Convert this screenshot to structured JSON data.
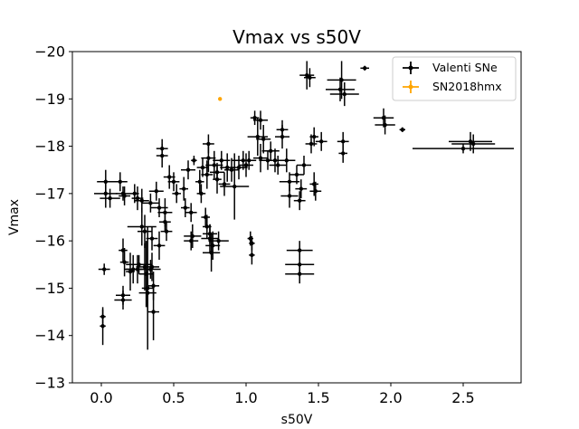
{
  "chart_data": {
    "type": "scatter",
    "title": "Vmax vs s50V",
    "xlabel": "s50V",
    "ylabel": "Vmax",
    "xlim": [
      -0.2,
      2.9
    ],
    "ylim": [
      -13,
      -20
    ],
    "y_inverted": true,
    "x_ticks": [
      "0.0",
      "0.5",
      "1.0",
      "1.5",
      "2.0",
      "2.5"
    ],
    "y_ticks": [
      "−20",
      "−19",
      "−18",
      "−17",
      "−16",
      "−15",
      "−14",
      "−13"
    ],
    "grid": false,
    "legend_position": "top-right",
    "series": [
      {
        "name": "Valenti SNe",
        "color": "#000000",
        "marker": "circle-with-errorbars",
        "points": [
          [
            0.02,
            -15.4,
            0.04,
            0.12
          ],
          [
            0.01,
            -14.4,
            0.02,
            0.15
          ],
          [
            0.01,
            -14.2,
            0.02,
            0.4
          ],
          [
            0.03,
            -17.25,
            0.06,
            0.25
          ],
          [
            0.03,
            -17.0,
            0.08,
            0.3
          ],
          [
            0.06,
            -16.9,
            0.07,
            0.2
          ],
          [
            0.13,
            -17.25,
            0.05,
            0.2
          ],
          [
            0.15,
            -17.0,
            0.05,
            0.15
          ],
          [
            0.16,
            -16.95,
            0.04,
            0.2
          ],
          [
            0.15,
            -15.8,
            0.03,
            0.25
          ],
          [
            0.16,
            -15.55,
            0.03,
            0.3
          ],
          [
            0.15,
            -14.85,
            0.05,
            0.2
          ],
          [
            0.15,
            -14.75,
            0.06,
            0.2
          ],
          [
            0.2,
            -15.35,
            0.03,
            0.4
          ],
          [
            0.22,
            -15.4,
            0.06,
            0.3
          ],
          [
            0.23,
            -17.0,
            0.03,
            0.2
          ],
          [
            0.25,
            -16.9,
            0.04,
            0.25
          ],
          [
            0.25,
            -15.4,
            0.08,
            0.3
          ],
          [
            0.26,
            -15.5,
            0.09,
            0.2
          ],
          [
            0.28,
            -16.85,
            0.05,
            0.25
          ],
          [
            0.28,
            -16.3,
            0.1,
            0.4
          ],
          [
            0.3,
            -16.2,
            0.05,
            0.35
          ],
          [
            0.3,
            -15.45,
            0.06,
            0.5
          ],
          [
            0.31,
            -15.3,
            0.05,
            0.7
          ],
          [
            0.32,
            -15.0,
            0.04,
            1.3
          ],
          [
            0.32,
            -14.9,
            0.06,
            0.4
          ],
          [
            0.34,
            -16.8,
            0.06,
            0.2
          ],
          [
            0.34,
            -15.4,
            0.07,
            0.2
          ],
          [
            0.35,
            -16.05,
            0.04,
            0.25
          ],
          [
            0.35,
            -15.45,
            0.05,
            0.3
          ],
          [
            0.36,
            -15.05,
            0.04,
            0.3
          ],
          [
            0.36,
            -14.5,
            0.04,
            0.6
          ],
          [
            0.38,
            -17.05,
            0.05,
            0.2
          ],
          [
            0.4,
            -16.7,
            0.06,
            0.2
          ],
          [
            0.4,
            -15.9,
            0.04,
            0.3
          ],
          [
            0.42,
            -17.95,
            0.04,
            0.2
          ],
          [
            0.42,
            -17.8,
            0.04,
            0.25
          ],
          [
            0.44,
            -16.6,
            0.05,
            0.3
          ],
          [
            0.44,
            -16.4,
            0.04,
            0.2
          ],
          [
            0.45,
            -16.2,
            0.04,
            0.2
          ],
          [
            0.47,
            -17.35,
            0.04,
            0.25
          ],
          [
            0.5,
            -17.25,
            0.04,
            0.2
          ],
          [
            0.52,
            -17.0,
            0.03,
            0.2
          ],
          [
            0.57,
            -17.1,
            0.03,
            0.25
          ],
          [
            0.58,
            -16.7,
            0.03,
            0.2
          ],
          [
            0.6,
            -17.5,
            0.05,
            0.2
          ],
          [
            0.62,
            -16.6,
            0.04,
            0.2
          ],
          [
            0.62,
            -16.0,
            0.05,
            0.2
          ],
          [
            0.63,
            -16.1,
            0.06,
            0.25
          ],
          [
            0.64,
            -17.7,
            0.02,
            0.1
          ],
          [
            0.68,
            -17.25,
            0.03,
            0.25
          ],
          [
            0.69,
            -17.0,
            0.03,
            0.2
          ],
          [
            0.7,
            -17.55,
            0.04,
            0.2
          ],
          [
            0.72,
            -16.5,
            0.03,
            0.2
          ],
          [
            0.73,
            -17.4,
            0.04,
            0.3
          ],
          [
            0.73,
            -16.3,
            0.03,
            0.25
          ],
          [
            0.74,
            -18.05,
            0.04,
            0.2
          ],
          [
            0.74,
            -17.75,
            0.05,
            0.3
          ],
          [
            0.75,
            -16.15,
            0.05,
            0.2
          ],
          [
            0.75,
            -16.05,
            0.06,
            0.3
          ],
          [
            0.76,
            -15.75,
            0.06,
            0.4
          ],
          [
            0.77,
            -15.9,
            0.05,
            0.3
          ],
          [
            0.78,
            -17.6,
            0.06,
            0.3
          ],
          [
            0.8,
            -17.45,
            0.05,
            0.2
          ],
          [
            0.8,
            -17.3,
            0.03,
            0.3
          ],
          [
            0.81,
            -16.0,
            0.07,
            0.2
          ],
          [
            0.83,
            -17.7,
            0.06,
            0.2
          ],
          [
            0.85,
            -17.2,
            0.04,
            0.25
          ],
          [
            0.87,
            -17.55,
            0.05,
            0.3
          ],
          [
            0.9,
            -17.5,
            0.05,
            0.25
          ],
          [
            0.92,
            -17.15,
            0.1,
            0.7
          ],
          [
            0.95,
            -17.55,
            0.06,
            0.25
          ],
          [
            0.98,
            -17.7,
            0.08,
            0.2
          ],
          [
            1.0,
            -17.6,
            0.05,
            0.25
          ],
          [
            1.02,
            -17.7,
            0.05,
            0.2
          ],
          [
            1.03,
            -16.05,
            0.02,
            0.15
          ],
          [
            1.04,
            -15.95,
            0.02,
            0.15
          ],
          [
            1.04,
            -15.7,
            0.02,
            0.2
          ],
          [
            1.06,
            -18.6,
            0.03,
            0.15
          ],
          [
            1.08,
            -18.2,
            0.07,
            0.4
          ],
          [
            1.1,
            -18.55,
            0.05,
            0.2
          ],
          [
            1.1,
            -17.75,
            0.05,
            0.3
          ],
          [
            1.12,
            -18.15,
            0.05,
            0.3
          ],
          [
            1.15,
            -17.7,
            0.06,
            0.2
          ],
          [
            1.17,
            -17.9,
            0.06,
            0.2
          ],
          [
            1.2,
            -17.7,
            0.08,
            0.25
          ],
          [
            1.22,
            -17.6,
            0.06,
            0.2
          ],
          [
            1.25,
            -18.35,
            0.04,
            0.2
          ],
          [
            1.25,
            -18.2,
            0.05,
            0.25
          ],
          [
            1.28,
            -17.7,
            0.06,
            0.25
          ],
          [
            1.3,
            -17.25,
            0.07,
            0.2
          ],
          [
            1.3,
            -16.95,
            0.06,
            0.25
          ],
          [
            1.35,
            -17.4,
            0.05,
            0.2
          ],
          [
            1.37,
            -16.85,
            0.04,
            0.2
          ],
          [
            1.38,
            -17.1,
            0.04,
            0.2
          ],
          [
            1.4,
            -17.6,
            0.05,
            0.2
          ],
          [
            1.37,
            -15.8,
            0.09,
            0.2
          ],
          [
            1.37,
            -15.5,
            0.1,
            0.25
          ],
          [
            1.37,
            -15.3,
            0.1,
            0.2
          ],
          [
            1.42,
            -19.5,
            0.05,
            0.3
          ],
          [
            1.44,
            -19.45,
            0.04,
            0.2
          ],
          [
            1.45,
            -18.05,
            0.04,
            0.2
          ],
          [
            1.47,
            -18.2,
            0.03,
            0.2
          ],
          [
            1.47,
            -17.2,
            0.03,
            0.25
          ],
          [
            1.48,
            -17.05,
            0.04,
            0.2
          ],
          [
            1.52,
            -18.1,
            0.04,
            0.2
          ],
          [
            1.66,
            -19.4,
            0.1,
            0.4
          ],
          [
            1.65,
            -19.2,
            0.1,
            0.25
          ],
          [
            1.68,
            -19.1,
            0.1,
            0.25
          ],
          [
            1.67,
            -18.1,
            0.04,
            0.2
          ],
          [
            1.67,
            -17.85,
            0.03,
            0.2
          ],
          [
            1.82,
            -19.65,
            0.03,
            0.05
          ],
          [
            1.95,
            -18.6,
            0.07,
            0.2
          ],
          [
            1.96,
            -18.45,
            0.07,
            0.2
          ],
          [
            2.08,
            -18.35,
            0.02,
            0.05
          ],
          [
            2.55,
            -18.1,
            0.15,
            0.2
          ],
          [
            2.57,
            -18.05,
            0.15,
            0.2
          ],
          [
            2.5,
            -17.95,
            0.35,
            0.1
          ]
        ]
      },
      {
        "name": "SN2018hmx",
        "color": "#ffa500",
        "marker": "circle-with-errorbars",
        "points": [
          [
            0.82,
            -19.0,
            0.0,
            0.0
          ]
        ]
      }
    ]
  }
}
